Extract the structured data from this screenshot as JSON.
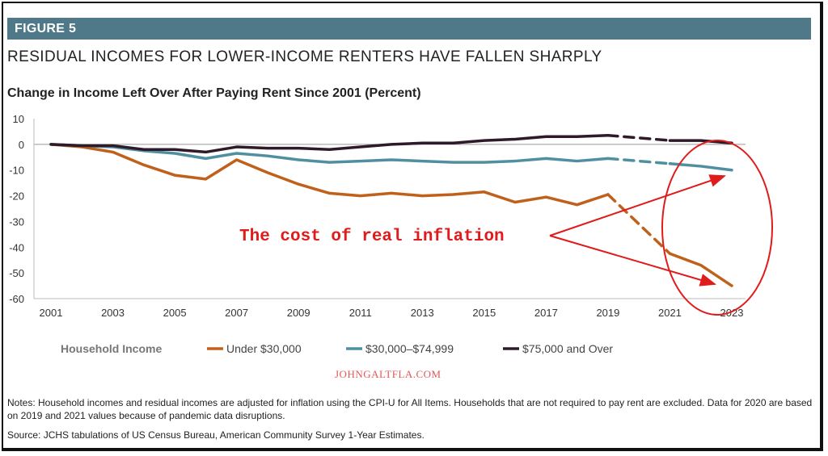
{
  "figure_label": "FIGURE 5",
  "headline": "RESIDUAL INCOMES FOR LOWER-INCOME RENTERS HAVE FALLEN SHARPLY",
  "chart_data": {
    "type": "line",
    "title": "Change in Income Left Over After Paying Rent Since 2001 (Percent)",
    "x": [
      2001,
      2002,
      2003,
      2004,
      2005,
      2006,
      2007,
      2008,
      2009,
      2010,
      2011,
      2012,
      2013,
      2014,
      2015,
      2016,
      2017,
      2018,
      2019,
      2020,
      2021,
      2022,
      2023
    ],
    "x_ticks": [
      "2001",
      "2003",
      "2005",
      "2007",
      "2009",
      "2011",
      "2013",
      "2015",
      "2017",
      "2019",
      "2021",
      "2023"
    ],
    "y_ticks": [
      "10",
      "0",
      "-10",
      "-20",
      "-30",
      "-40",
      "-50",
      "-60"
    ],
    "ylim": [
      -60,
      10
    ],
    "xlim": [
      2001,
      2023
    ],
    "grid": false,
    "dashed_segment_note": "segments 2019-2021 drawn dashed",
    "legend_title": "Household Income",
    "legend_position": "bottom",
    "series": [
      {
        "name": "Under $30,000",
        "color": "#c0611b",
        "values": [
          0,
          -1,
          -3,
          -8,
          -12,
          -13.5,
          -6,
          -11,
          -15.5,
          -19,
          -20,
          -19,
          -20,
          -19.5,
          -18.5,
          -22.5,
          -20.5,
          -23.5,
          -19.5,
          -31,
          -42.5,
          -47,
          -55
        ]
      },
      {
        "name": "$30,000–$74,999",
        "color": "#4f8fa0",
        "values": [
          0,
          -0.5,
          -1,
          -2.5,
          -3.5,
          -5.5,
          -3.5,
          -4.5,
          -6,
          -7,
          -6.5,
          -6,
          -6.5,
          -7,
          -7,
          -6.5,
          -5.5,
          -6.5,
          -5.5,
          -6.5,
          -7.5,
          -8.5,
          -10
        ]
      },
      {
        "name": "$75,000 and Over",
        "color": "#2e1a28",
        "values": [
          0,
          -0.5,
          -0.5,
          -2,
          -2,
          -3,
          -1,
          -1.5,
          -1.5,
          -2,
          -1,
          0,
          0.5,
          0.5,
          1.5,
          2,
          3,
          3,
          3.5,
          2.5,
          1.5,
          1.5,
          0.5
        ]
      }
    ],
    "annotation": {
      "text": "The cost of real inflation",
      "color": "#e01b1b"
    }
  },
  "watermark": "JOHNGALTFLA.COM",
  "notes": "Notes: Household incomes and residual incomes are adjusted for inflation using the CPI-U for All Items. Households that are not required to pay rent are excluded. Data for 2020 are based on 2019 and 2021 values because of pandemic data disruptions.",
  "source": "Source: JCHS tabulations of US Census Bureau, American Community Survey 1-Year Estimates."
}
